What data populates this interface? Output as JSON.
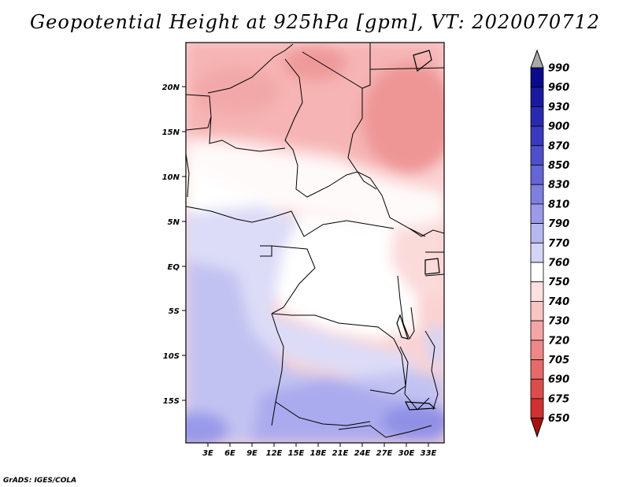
{
  "title": "Geopotential Height at 925hPa [gpm], VT: 2020070712",
  "credit": "GrADS: IGES/COLA",
  "map": {
    "lat_ticks": [
      "20N",
      "15N",
      "10N",
      "5N",
      "EQ",
      "5S",
      "10S",
      "15S"
    ],
    "lon_ticks": [
      "3E",
      "6E",
      "9E",
      "12E",
      "15E",
      "18E",
      "21E",
      "24E",
      "27E",
      "30E",
      "33E"
    ]
  },
  "colorbar": {
    "levels": [
      "990",
      "960",
      "930",
      "900",
      "870",
      "850",
      "830",
      "810",
      "790",
      "770",
      "760",
      "750",
      "740",
      "730",
      "720",
      "705",
      "690",
      "675",
      "650"
    ],
    "colors": [
      "#0a0a8c",
      "#1a1aa0",
      "#2a2ab0",
      "#3a3ac0",
      "#4f4fcc",
      "#6565d6",
      "#7f7fe0",
      "#9a9ae8",
      "#b7b7f0",
      "#d4d4f6",
      "#ffffff",
      "#fde0e0",
      "#f9c4c4",
      "#f4a6a6",
      "#ee8888",
      "#e66a6a",
      "#dd4c4c",
      "#d03030",
      "#b81818"
    ],
    "over_color": "#a9a9a9",
    "under_color": "#aa1010"
  }
}
